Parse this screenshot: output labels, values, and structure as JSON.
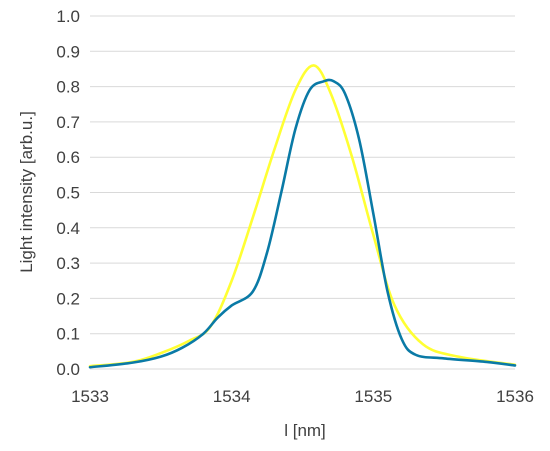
{
  "chart_data": {
    "type": "line",
    "title": "",
    "xlabel": "l [nm]",
    "ylabel": "Light intensity [arb.u.]",
    "xlim": [
      1533,
      1536
    ],
    "ylim": [
      0.0,
      1.0
    ],
    "xticks": [
      "1533",
      "1534",
      "1535",
      "1536"
    ],
    "yticks": [
      "0.0",
      "0.1",
      "0.2",
      "0.3",
      "0.4",
      "0.5",
      "0.6",
      "0.7",
      "0.8",
      "0.9",
      "1.0"
    ],
    "grid": "horizontal",
    "legend": "none",
    "series": [
      {
        "color": "#ffff33",
        "x": [
          1533.0,
          1533.3,
          1533.5,
          1533.7,
          1533.85,
          1534.0,
          1534.15,
          1534.3,
          1534.45,
          1534.58,
          1534.7,
          1534.85,
          1535.0,
          1535.15,
          1535.35,
          1535.6,
          1536.0
        ],
        "y": [
          0.008,
          0.02,
          0.045,
          0.08,
          0.12,
          0.25,
          0.43,
          0.62,
          0.79,
          0.86,
          0.78,
          0.6,
          0.38,
          0.18,
          0.07,
          0.035,
          0.012
        ]
      },
      {
        "color": "#0a7aa6",
        "x": [
          1533.0,
          1533.3,
          1533.5,
          1533.65,
          1533.8,
          1533.9,
          1534.0,
          1534.15,
          1534.25,
          1534.35,
          1534.45,
          1534.55,
          1534.65,
          1534.72,
          1534.8,
          1534.9,
          1535.0,
          1535.1,
          1535.2,
          1535.3,
          1535.5,
          1535.8,
          1536.0
        ],
        "y": [
          0.005,
          0.018,
          0.035,
          0.06,
          0.1,
          0.145,
          0.18,
          0.22,
          0.33,
          0.5,
          0.68,
          0.79,
          0.815,
          0.815,
          0.78,
          0.65,
          0.44,
          0.22,
          0.085,
          0.04,
          0.03,
          0.02,
          0.01
        ]
      }
    ]
  }
}
